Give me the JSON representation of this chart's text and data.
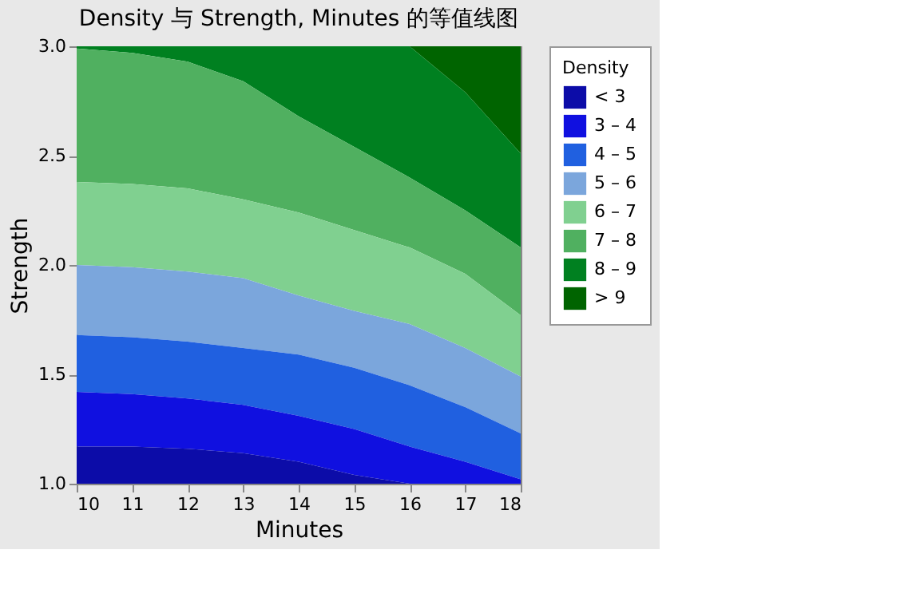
{
  "chart_data": {
    "type": "area",
    "title": "Density 与 Strength, Minutes 的等值线图",
    "xlabel": "Minutes",
    "ylabel": "Strength",
    "legend_title": "Density",
    "legend": "top right",
    "grid": false,
    "x": [
      10,
      11,
      12,
      13,
      14,
      15,
      16,
      17,
      18
    ],
    "xlim": [
      10,
      18
    ],
    "xticks": [
      10,
      11,
      12,
      13,
      14,
      15,
      16,
      17,
      18
    ],
    "ylim": [
      1,
      3
    ],
    "yticks": [
      {
        "value": 1,
        "label": "1.0"
      },
      {
        "value": 1.5,
        "label": "1.5"
      },
      {
        "value": 2,
        "label": "2.0"
      },
      {
        "value": 2.5,
        "label": "2.5"
      },
      {
        "value": 3,
        "label": "3.0"
      }
    ],
    "series": [
      {
        "name": "< 3",
        "color": "#0c0ca8",
        "values": [
          1.17,
          1.17,
          1.16,
          1.14,
          1.1,
          1.04,
          1.0,
          1.0,
          1.0
        ]
      },
      {
        "name": "3 – 4",
        "color": "#1010e0",
        "values": [
          1.42,
          1.41,
          1.39,
          1.36,
          1.31,
          1.25,
          1.17,
          1.1,
          1.02
        ]
      },
      {
        "name": "4 – 5",
        "color": "#2060e0",
        "values": [
          1.68,
          1.67,
          1.65,
          1.62,
          1.59,
          1.53,
          1.45,
          1.35,
          1.23
        ]
      },
      {
        "name": "5 – 6",
        "color": "#7ba6dc",
        "values": [
          2.0,
          1.99,
          1.97,
          1.94,
          1.86,
          1.79,
          1.73,
          1.62,
          1.49
        ]
      },
      {
        "name": "6 – 7",
        "color": "#80d090",
        "values": [
          2.38,
          2.37,
          2.35,
          2.3,
          2.24,
          2.16,
          2.08,
          1.96,
          1.77
        ]
      },
      {
        "name": "7 – 8",
        "color": "#50b060",
        "values": [
          2.99,
          2.97,
          2.93,
          2.84,
          2.68,
          2.54,
          2.4,
          2.25,
          2.08
        ]
      },
      {
        "name": "8 – 9",
        "color": "#008020",
        "values": [
          3.0,
          3.0,
          3.0,
          3.0,
          3.0,
          3.0,
          3.0,
          2.79,
          2.51
        ]
      },
      {
        "name": "> 9",
        "color": "#006400",
        "values": [
          3.0,
          3.0,
          3.0,
          3.0,
          3.0,
          3.0,
          3.0,
          3.0,
          3.0
        ]
      }
    ]
  }
}
